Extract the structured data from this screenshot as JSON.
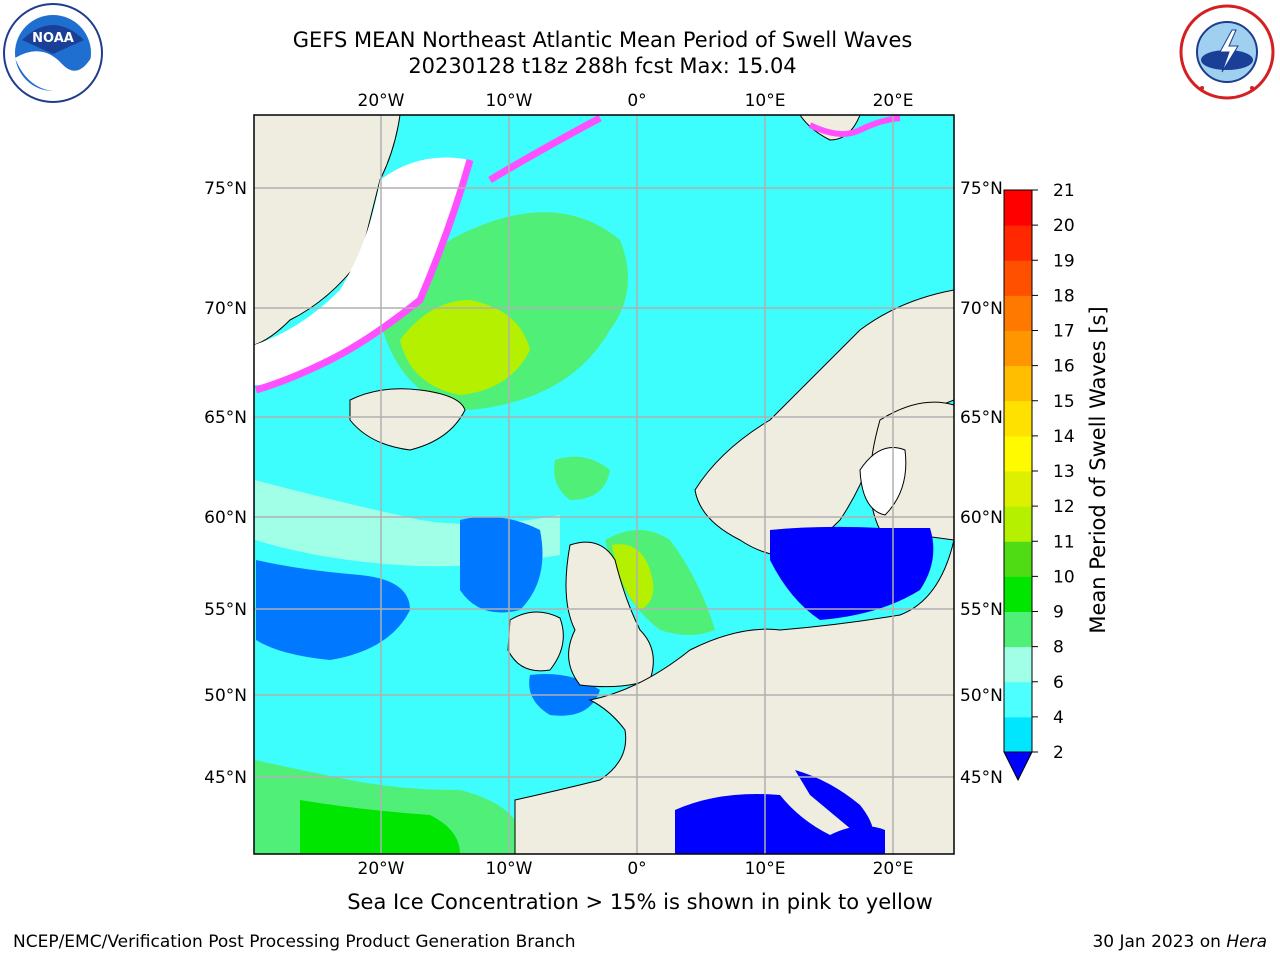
{
  "header": {
    "title_line1": "GEFS MEAN Northeast Atlantic Mean Period of Swell Waves",
    "title_line2": "20230128 t18z 288h fcst   Max: 15.04"
  },
  "logos": {
    "noaa_text": "NOAA",
    "nws_text": "NATIONAL WEATHER SERVICE"
  },
  "map": {
    "lon_labels": [
      "20°W",
      "10°W",
      "0°",
      "10°E",
      "20°E"
    ],
    "lat_labels": [
      "75°N",
      "70°N",
      "65°N",
      "60°N",
      "55°N",
      "50°N",
      "45°N"
    ],
    "colors": {
      "land": "#efede0",
      "ocean": "#3dfdfd",
      "ice": "#ffffff",
      "grid": "#b0b0b0"
    }
  },
  "colorbar": {
    "title": "Mean Period of Swell Waves [s]",
    "ticks": [
      "2",
      "4",
      "6",
      "8",
      "9",
      "10",
      "11",
      "12",
      "13",
      "14",
      "15",
      "16",
      "17",
      "18",
      "19",
      "20",
      "21"
    ],
    "colors": [
      "#0078ff",
      "#00e6ff",
      "#4dffff",
      "#a0ffe6",
      "#50f078",
      "#00e600",
      "#50dc14",
      "#b4f000",
      "#dcf000",
      "#fffa00",
      "#ffe100",
      "#ffbe00",
      "#ff9600",
      "#ff7800",
      "#ff5000",
      "#ff2800",
      "#ff0000"
    ],
    "under_color": "#0000ff"
  },
  "caption": "Sea Ice Concentration > 15% is shown in pink to yellow",
  "footer": {
    "left": "NCEP/EMC/Verification Post Processing Product Generation Branch",
    "right_date": "30 Jan 2023 on ",
    "right_host": "Hera"
  }
}
